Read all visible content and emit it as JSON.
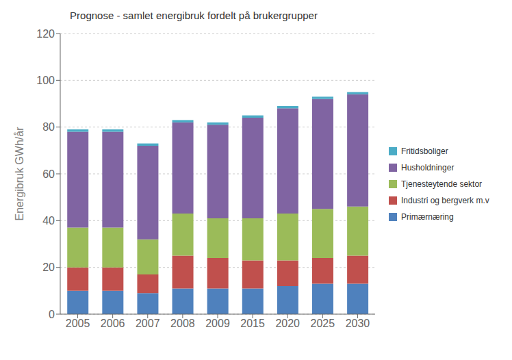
{
  "chart_data": {
    "type": "bar",
    "title": "Prognose - samlet energibruk fordelt på brukergrupper",
    "ylabel": "Energibruk GWh/år",
    "categories": [
      "2005",
      "2006",
      "2007",
      "2008",
      "2009",
      "2015",
      "2020",
      "2025",
      "2030"
    ],
    "series": [
      {
        "name": "Primærnæring",
        "color": "#4F81BD",
        "values": [
          10,
          10,
          9,
          11,
          11,
          11,
          12,
          13,
          13
        ]
      },
      {
        "name": "Industri og bergverk m.v",
        "color": "#C0504D",
        "values": [
          10,
          10,
          8,
          14,
          13,
          12,
          11,
          11,
          12
        ]
      },
      {
        "name": "Tjenesteytende sektor",
        "color": "#9BBB59",
        "values": [
          17,
          17,
          15,
          18,
          17,
          18,
          20,
          21,
          21
        ]
      },
      {
        "name": "Husholdninger",
        "color": "#8064A2",
        "values": [
          41,
          41,
          40,
          39,
          40,
          43,
          45,
          47,
          48
        ]
      },
      {
        "name": "Fritidsboliger",
        "color": "#4BACC6",
        "values": [
          1,
          1,
          1,
          1,
          1,
          1,
          1,
          1,
          1
        ]
      }
    ],
    "stacked": true,
    "ylim": [
      0,
      120
    ],
    "yticks": [
      0,
      20,
      40,
      60,
      80,
      100,
      120
    ],
    "grid": true,
    "legend": "right"
  }
}
